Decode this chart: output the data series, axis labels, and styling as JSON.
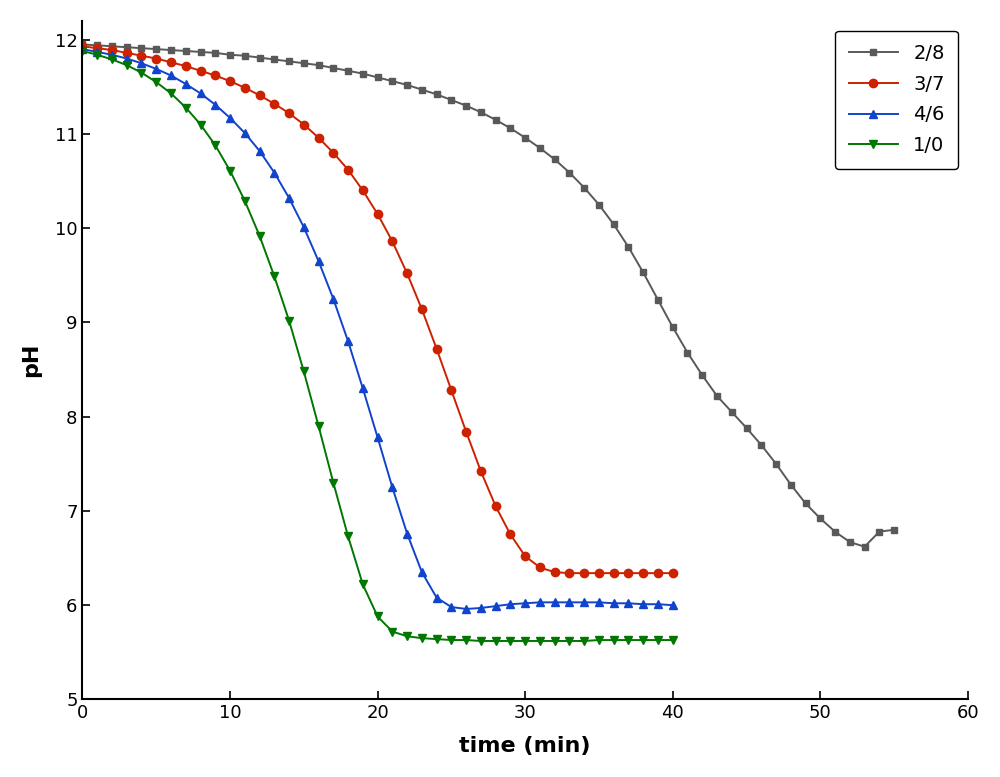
{
  "title": "",
  "xlabel": "time (min)",
  "ylabel": "pH",
  "xlim": [
    0,
    60
  ],
  "ylim": [
    5,
    12.2
  ],
  "xticks": [
    0,
    10,
    20,
    30,
    40,
    50,
    60
  ],
  "yticks": [
    5,
    6,
    7,
    8,
    9,
    10,
    11,
    12
  ],
  "series": [
    {
      "label": "2/8",
      "color": "#595959",
      "marker": "s",
      "x": [
        0,
        1,
        2,
        3,
        4,
        5,
        6,
        7,
        8,
        9,
        10,
        11,
        12,
        13,
        14,
        15,
        16,
        17,
        18,
        19,
        20,
        21,
        22,
        23,
        24,
        25,
        26,
        27,
        28,
        29,
        30,
        31,
        32,
        33,
        34,
        35,
        36,
        37,
        38,
        39,
        40,
        41,
        42,
        43,
        44,
        45,
        46,
        47,
        48,
        49,
        50,
        51,
        52,
        53,
        54,
        55
      ],
      "y": [
        11.95,
        11.94,
        11.93,
        11.92,
        11.91,
        11.9,
        11.89,
        11.88,
        11.87,
        11.86,
        11.84,
        11.83,
        11.81,
        11.79,
        11.77,
        11.75,
        11.73,
        11.7,
        11.67,
        11.64,
        11.6,
        11.56,
        11.52,
        11.47,
        11.42,
        11.36,
        11.3,
        11.23,
        11.15,
        11.06,
        10.96,
        10.85,
        10.73,
        10.59,
        10.43,
        10.25,
        10.04,
        9.8,
        9.53,
        9.24,
        8.95,
        8.68,
        8.44,
        8.22,
        8.05,
        7.88,
        7.7,
        7.5,
        7.28,
        7.08,
        6.92,
        6.78,
        6.67,
        6.62,
        6.78,
        6.8
      ]
    },
    {
      "label": "3/7",
      "color": "#cc2200",
      "marker": "o",
      "x": [
        0,
        1,
        2,
        3,
        4,
        5,
        6,
        7,
        8,
        9,
        10,
        11,
        12,
        13,
        14,
        15,
        16,
        17,
        18,
        19,
        20,
        21,
        22,
        23,
        24,
        25,
        26,
        27,
        28,
        29,
        30,
        31,
        32,
        33,
        34,
        35,
        36,
        37,
        38,
        39,
        40
      ],
      "y": [
        11.93,
        11.91,
        11.89,
        11.86,
        11.83,
        11.8,
        11.76,
        11.72,
        11.67,
        11.62,
        11.56,
        11.49,
        11.41,
        11.32,
        11.22,
        11.1,
        10.96,
        10.8,
        10.62,
        10.4,
        10.15,
        9.86,
        9.52,
        9.14,
        8.72,
        8.28,
        7.84,
        7.42,
        7.05,
        6.75,
        6.52,
        6.4,
        6.35,
        6.34,
        6.34,
        6.34,
        6.34,
        6.34,
        6.34,
        6.34,
        6.34
      ]
    },
    {
      "label": "4/6",
      "color": "#1144cc",
      "marker": "^",
      "x": [
        0,
        1,
        2,
        3,
        4,
        5,
        6,
        7,
        8,
        9,
        10,
        11,
        12,
        13,
        14,
        15,
        16,
        17,
        18,
        19,
        20,
        21,
        22,
        23,
        24,
        25,
        26,
        27,
        28,
        29,
        30,
        31,
        32,
        33,
        34,
        35,
        36,
        37,
        38,
        39,
        40
      ],
      "y": [
        11.9,
        11.87,
        11.84,
        11.8,
        11.75,
        11.69,
        11.62,
        11.53,
        11.43,
        11.31,
        11.17,
        11.01,
        10.82,
        10.59,
        10.32,
        10.01,
        9.65,
        9.25,
        8.8,
        8.3,
        7.78,
        7.25,
        6.76,
        6.35,
        6.08,
        5.98,
        5.96,
        5.97,
        5.99,
        6.01,
        6.02,
        6.03,
        6.03,
        6.03,
        6.03,
        6.03,
        6.02,
        6.02,
        6.01,
        6.01,
        6.0
      ]
    },
    {
      "label": "1/0",
      "color": "#007700",
      "marker": "v",
      "x": [
        0,
        1,
        2,
        3,
        4,
        5,
        6,
        7,
        8,
        9,
        10,
        11,
        12,
        13,
        14,
        15,
        16,
        17,
        18,
        19,
        20,
        21,
        22,
        23,
        24,
        25,
        26,
        27,
        28,
        29,
        30,
        31,
        32,
        33,
        34,
        35,
        36,
        37,
        38,
        39,
        40
      ],
      "y": [
        11.88,
        11.84,
        11.79,
        11.73,
        11.65,
        11.55,
        11.43,
        11.28,
        11.1,
        10.88,
        10.61,
        10.29,
        9.92,
        9.49,
        9.02,
        8.48,
        7.9,
        7.3,
        6.73,
        6.22,
        5.88,
        5.72,
        5.67,
        5.65,
        5.64,
        5.63,
        5.63,
        5.62,
        5.62,
        5.62,
        5.62,
        5.62,
        5.62,
        5.62,
        5.62,
        5.63,
        5.63,
        5.63,
        5.63,
        5.63,
        5.63
      ]
    }
  ],
  "background_color": "#ffffff",
  "legend_loc": "upper right",
  "figsize": [
    10.0,
    7.77
  ],
  "dpi": 100,
  "marker_sizes": {
    "s": 5,
    "o": 6,
    "^": 6,
    "v": 6
  },
  "linewidth": 1.4
}
